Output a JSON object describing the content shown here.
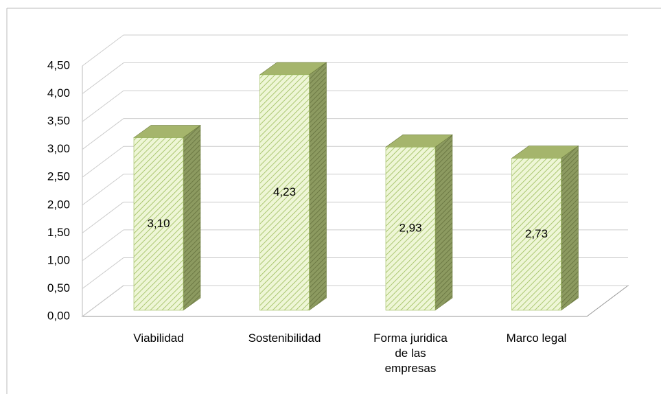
{
  "chart_data": {
    "type": "bar3d",
    "categories": [
      "Viabilidad",
      "Sostenibilidad",
      "Forma juridica de las empresas",
      "Marco legal"
    ],
    "values": [
      3.1,
      4.23,
      2.93,
      2.73
    ],
    "value_labels": [
      "3,10",
      "4,23",
      "2,93",
      "2,73"
    ],
    "color": "#9bbb59",
    "ylim": [
      0,
      4.5
    ],
    "yticks": [
      {
        "value": 0,
        "label": "0,00"
      },
      {
        "value": 0.5,
        "label": "0,50"
      },
      {
        "value": 1,
        "label": "1,00"
      },
      {
        "value": 1.5,
        "label": "1,50"
      },
      {
        "value": 2,
        "label": "2,00"
      },
      {
        "value": 2.5,
        "label": "2,50"
      },
      {
        "value": 3,
        "label": "3,00"
      },
      {
        "value": 3.5,
        "label": "3,50"
      },
      {
        "value": 4,
        "label": "4,00"
      },
      {
        "value": 4.5,
        "label": "4,50"
      }
    ],
    "grid": true
  }
}
